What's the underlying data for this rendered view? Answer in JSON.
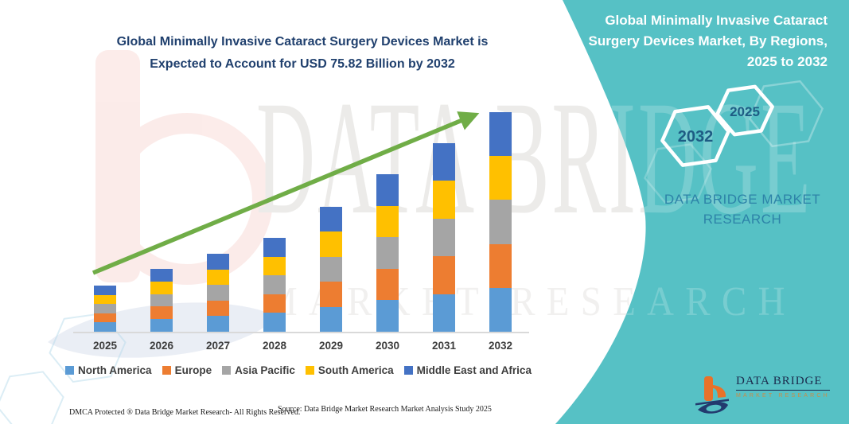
{
  "chart": {
    "title_lines": [
      "Global Minimally Invasive Cataract Surgery Devices Market is",
      "Expected to Account for USD 75.82 Billion by 2032"
    ]
  },
  "chart_data": {
    "type": "bar",
    "stacked": true,
    "unit": "USD Billion",
    "categories": [
      "2025",
      "2026",
      "2027",
      "2028",
      "2029",
      "2030",
      "2031",
      "2032"
    ],
    "series": [
      {
        "name": "North America",
        "color": "#5b9bd5",
        "values": [
          3.19,
          4.34,
          5.38,
          6.48,
          8.63,
          10.88,
          13.02,
          15.16
        ]
      },
      {
        "name": "Europe",
        "color": "#ed7d31",
        "values": [
          3.19,
          4.34,
          5.38,
          6.48,
          8.63,
          10.88,
          13.02,
          15.16
        ]
      },
      {
        "name": "Asia Pacific",
        "color": "#a5a5a5",
        "values": [
          3.19,
          4.34,
          5.38,
          6.48,
          8.63,
          10.88,
          13.02,
          15.16
        ]
      },
      {
        "name": "South America",
        "color": "#ffc000",
        "values": [
          3.19,
          4.34,
          5.38,
          6.48,
          8.63,
          10.88,
          13.02,
          15.16
        ]
      },
      {
        "name": "Middle East and Africa",
        "color": "#4472c4",
        "values": [
          3.19,
          4.34,
          5.38,
          6.48,
          8.63,
          10.88,
          13.02,
          15.16
        ]
      }
    ],
    "totals_estimated": [
      15.9,
      21.7,
      26.9,
      32.4,
      43.1,
      54.4,
      65.1,
      75.82
    ],
    "highlight_value": "USD 75.82 Billion by 2032",
    "xlabel": "",
    "ylabel": "",
    "y_axis_visible": false,
    "legend_position": "bottom",
    "trend_arrow": true
  },
  "watermark": {
    "line1": "DATA BRIDGE",
    "line2": "MARKET RESEARCH"
  },
  "panel": {
    "title_lines": [
      "Global Minimally Invasive Cataract",
      "Surgery Devices Market, By Regions,",
      "2025 to 2032"
    ],
    "hexagons": [
      {
        "label": "2032"
      },
      {
        "label": "2025"
      }
    ],
    "caption": "DATA BRIDGE MARKET RESEARCH"
  },
  "logo": {
    "name": "DATA BRIDGE",
    "tagline": "MARKET RESEARCH"
  },
  "footer": {
    "dmca": "DMCA Protected ® Data Bridge Market Research- All Rights Reserved.",
    "source": "Source: Data Bridge Market Research Market Analysis Study 2025"
  },
  "colors": {
    "teal_panel": "#56c1c5",
    "title_navy": "#20406e",
    "arrow_green": "#70ad47",
    "panel_caption_blue": "#2d83a8",
    "hexagon_year_navy": "#1e5c84",
    "logo_navy": "#1b2b4d",
    "logo_orange": "#e8722a",
    "axis_label_gray": "#3d3d3d"
  }
}
